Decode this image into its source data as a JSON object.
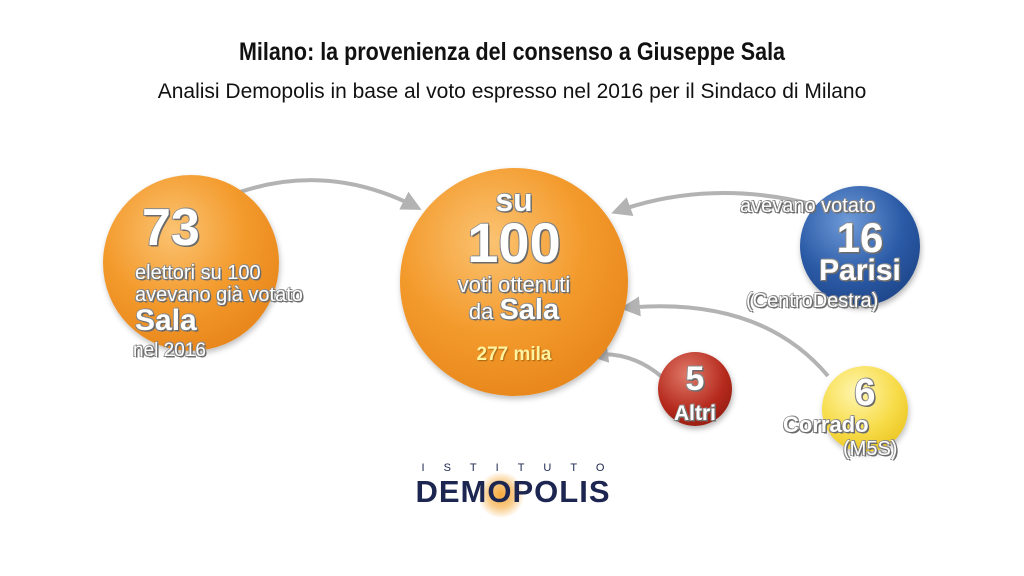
{
  "title": "Milano: la provenienza del consenso a Giuseppe Sala",
  "subtitle": "Analisi Demopolis in base al voto espresso nel 2016 per il Sindaco di Milano",
  "colors": {
    "orange": "#f39a2c",
    "blue": "#2b5aa6",
    "red": "#b52a1d",
    "yellow": "#f7dc4a",
    "arrow": "#b3b3b3",
    "logo": "#1c2650"
  },
  "sala_2016": {
    "value": "73",
    "line1": "elettori su 100",
    "line2": "avevano già votato",
    "name": "Sala",
    "line4": "nel 2016"
  },
  "center": {
    "top": "su",
    "value": "100",
    "line1": "voti ottenuti",
    "line2_prefix": "da ",
    "line2_name": "Sala",
    "total": "277 mila"
  },
  "parisi": {
    "label_top": "avevano votato",
    "value": "16",
    "name": "Parisi",
    "party": "(CentroDestra)"
  },
  "altri": {
    "value": "5",
    "name": "Altri"
  },
  "corrado": {
    "value": "6",
    "name": "Corrado",
    "party": "(M5S)"
  },
  "logo": {
    "top": "ISTITUTO",
    "main": "DEMOPOLIS"
  }
}
